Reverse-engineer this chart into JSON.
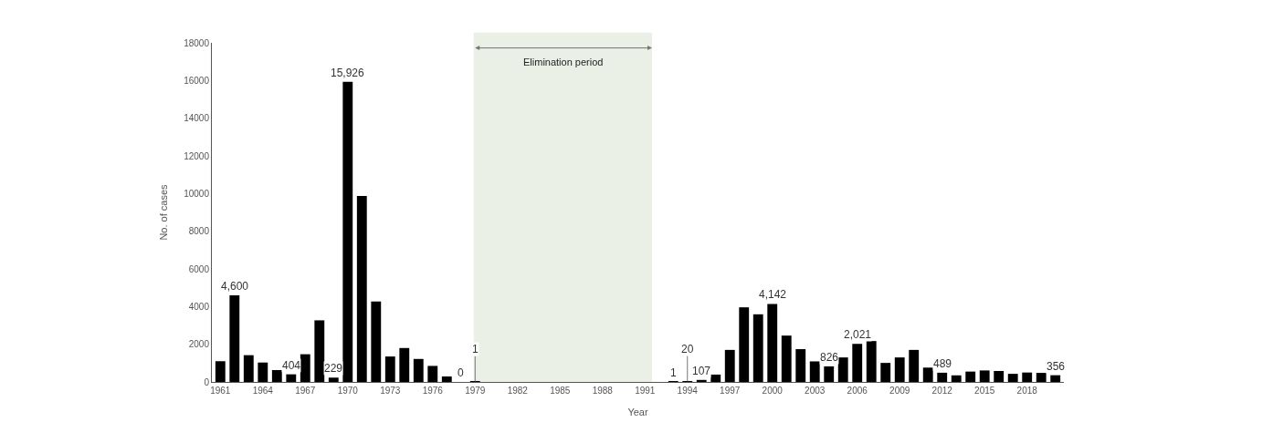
{
  "chart_data": {
    "type": "bar",
    "xlabel": "Year",
    "ylabel": "No. of cases",
    "x": [
      1961,
      1962,
      1963,
      1964,
      1965,
      1966,
      1967,
      1968,
      1969,
      1970,
      1971,
      1972,
      1973,
      1974,
      1975,
      1976,
      1977,
      1978,
      1979,
      1980,
      1981,
      1982,
      1983,
      1984,
      1985,
      1986,
      1987,
      1988,
      1989,
      1990,
      1991,
      1992,
      1993,
      1994,
      1995,
      1996,
      1997,
      1998,
      1999,
      2000,
      2001,
      2002,
      2003,
      2004,
      2005,
      2006,
      2007,
      2008,
      2009,
      2010,
      2011,
      2012,
      2013,
      2014,
      2015,
      2016,
      2017,
      2018,
      2019,
      2020
    ],
    "values": [
      1100,
      4600,
      1420,
      1030,
      630,
      404,
      1470,
      3270,
      229,
      15926,
      9870,
      4270,
      1350,
      1800,
      1220,
      850,
      290,
      0,
      1,
      null,
      null,
      null,
      null,
      null,
      null,
      null,
      null,
      null,
      null,
      null,
      null,
      null,
      1,
      20,
      107,
      390,
      1700,
      3960,
      3590,
      4142,
      2460,
      1740,
      1090,
      826,
      1300,
      2021,
      2170,
      1010,
      1300,
      1700,
      760,
      489,
      350,
      550,
      610,
      580,
      430,
      500,
      480,
      356
    ],
    "value_labels": [
      null,
      "4,600",
      null,
      null,
      null,
      "404",
      null,
      null,
      "229",
      "15,926",
      null,
      null,
      null,
      null,
      null,
      null,
      null,
      "0",
      "1",
      null,
      null,
      null,
      null,
      null,
      null,
      null,
      null,
      null,
      null,
      null,
      null,
      null,
      "1",
      "20",
      "107",
      null,
      null,
      null,
      null,
      "4,142",
      null,
      null,
      null,
      "826",
      null,
      "2,021",
      null,
      null,
      null,
      null,
      null,
      "489",
      null,
      null,
      null,
      null,
      null,
      null,
      null,
      "356"
    ],
    "color": "#000000",
    "xlim": [
      1960.4,
      2020.6
    ],
    "xticks": [
      1961,
      1964,
      1967,
      1970,
      1973,
      1976,
      1979,
      1982,
      1985,
      1988,
      1991,
      1994,
      1997,
      2000,
      2003,
      2006,
      2009,
      2012,
      2015,
      2018
    ],
    "ylim": [
      0,
      18000
    ],
    "yticks": [
      0,
      2000,
      4000,
      6000,
      8000,
      10000,
      12000,
      14000,
      16000,
      18000
    ],
    "bands": [
      {
        "axis": "x",
        "from": 1978.9,
        "to": 1991.5,
        "label": "Elimination period",
        "color": "#eaf0e6"
      }
    ],
    "grid": false,
    "legend": false
  }
}
